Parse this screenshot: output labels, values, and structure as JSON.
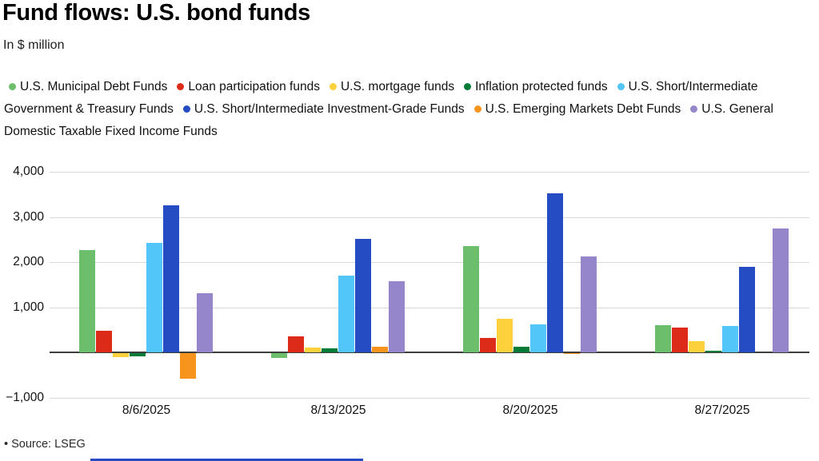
{
  "header": {
    "title": "Fund flows: U.S. bond funds",
    "subtitle": "In $ million"
  },
  "footer": {
    "source": "• Source: LSEG",
    "accent_color": "#264cc3"
  },
  "chart_data": {
    "type": "bar",
    "title": "Fund flows: U.S. bond funds",
    "units": "$ million",
    "categories": [
      "8/6/2025",
      "8/13/2025",
      "8/20/2025",
      "8/27/2025"
    ],
    "series": [
      {
        "name": "U.S. Municipal Debt Funds",
        "color": "#6dbe6c",
        "values": [
          2270,
          -100,
          2350,
          610
        ]
      },
      {
        "name": "Loan participation funds",
        "color": "#dc2b19",
        "values": [
          480,
          350,
          310,
          550
        ]
      },
      {
        "name": "U.S. mortgage funds",
        "color": "#fcd13b",
        "values": [
          -90,
          110,
          740,
          250
        ]
      },
      {
        "name": "Inflation protected funds",
        "color": "#047c38",
        "values": [
          -70,
          80,
          120,
          30
        ]
      },
      {
        "name": "U.S. Short/Intermediate Government & Treasury Funds",
        "color": "#52c6f8",
        "values": [
          2430,
          1700,
          620,
          580
        ]
      },
      {
        "name": "U.S. Short/Intermediate Investment-Grade Funds",
        "color": "#264cc3",
        "values": [
          3250,
          2520,
          3520,
          1900
        ]
      },
      {
        "name": "U.S. Emerging Markets Debt Funds",
        "color": "#f7941d",
        "values": [
          -570,
          130,
          -20,
          0
        ]
      },
      {
        "name": "U.S. General Domestic Taxable Fixed Income Funds",
        "color": "#9585ca",
        "values": [
          1310,
          1580,
          2130,
          2750
        ]
      }
    ],
    "yticks": [
      {
        "value": 4000,
        "label": "4,000"
      },
      {
        "value": 3000,
        "label": "3,000"
      },
      {
        "value": 2000,
        "label": "2,000"
      },
      {
        "value": 1000,
        "label": "1,000"
      },
      {
        "value": 0,
        "label": ""
      },
      {
        "value": -1000,
        "label": "−1,000"
      }
    ],
    "ylim": [
      -1000,
      4000
    ],
    "grid": true,
    "legend_position": "top"
  }
}
